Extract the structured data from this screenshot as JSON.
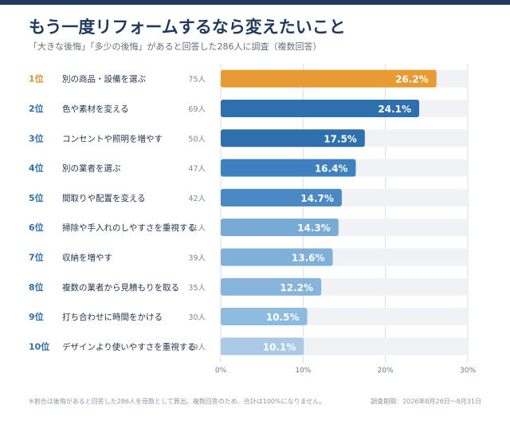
{
  "header": {
    "title": "もう一度リフォームするなら変えたいこと",
    "subtitle": "「大きな後悔」「多少の後悔」があると回答した286人に調査（複数回答）"
  },
  "footer": {
    "note": "※割合は後悔があると回答した286人を母数として算出。複数回答のため、合計は100%になりません。",
    "period": "調査期間：2026年8月26日～8月31日"
  },
  "colors": {
    "highlight": "#e89a33",
    "track": "#f0f2f6",
    "grid": "#d9dee5",
    "rank_default": "#2e6fae",
    "rank_highlight": "#e0912c",
    "bar_scale": [
      "#2e6fae",
      "#2e6fae",
      "#2e6fae",
      "#3f80c0",
      "#4a89c6",
      "#78aad6",
      "#7fb0d9",
      "#86b4db",
      "#8dbadf",
      "#aac9e6"
    ]
  },
  "chart_data": {
    "type": "bar",
    "orientation": "horizontal",
    "title": "もう一度リフォームするなら変えたいこと",
    "xlim": [
      0,
      30
    ],
    "x_ticks": [
      0,
      10,
      20,
      30
    ],
    "x_tick_labels": [
      "0%",
      "10%",
      "20%",
      "30%"
    ],
    "grid": true,
    "ranks": [
      "1位",
      "2位",
      "3位",
      "4位",
      "5位",
      "6位",
      "7位",
      "8位",
      "9位",
      "10位"
    ],
    "categories": [
      "別の商品・設備を選ぶ",
      "色や素材を変える",
      "コンセントや照明を増やす",
      "別の業者を選ぶ",
      "間取りや配置を変える",
      "掃除や手入れのしやすさを重視する",
      "収納を増やす",
      "複数の業者から見積もりを取る",
      "打ち合わせに時間をかける",
      "デザインより使いやすさを重視する"
    ],
    "counts": [
      "75人",
      "69人",
      "50人",
      "47人",
      "42人",
      "41人",
      "39人",
      "35人",
      "30人",
      "29人"
    ],
    "values": [
      26.2,
      24.1,
      17.5,
      16.4,
      14.7,
      14.3,
      13.6,
      12.2,
      10.5,
      10.1
    ],
    "value_labels": [
      "26.2%",
      "24.1%",
      "17.5%",
      "16.4%",
      "14.7%",
      "14.3%",
      "13.6%",
      "12.2%",
      "10.5%",
      "10.1%"
    ]
  }
}
